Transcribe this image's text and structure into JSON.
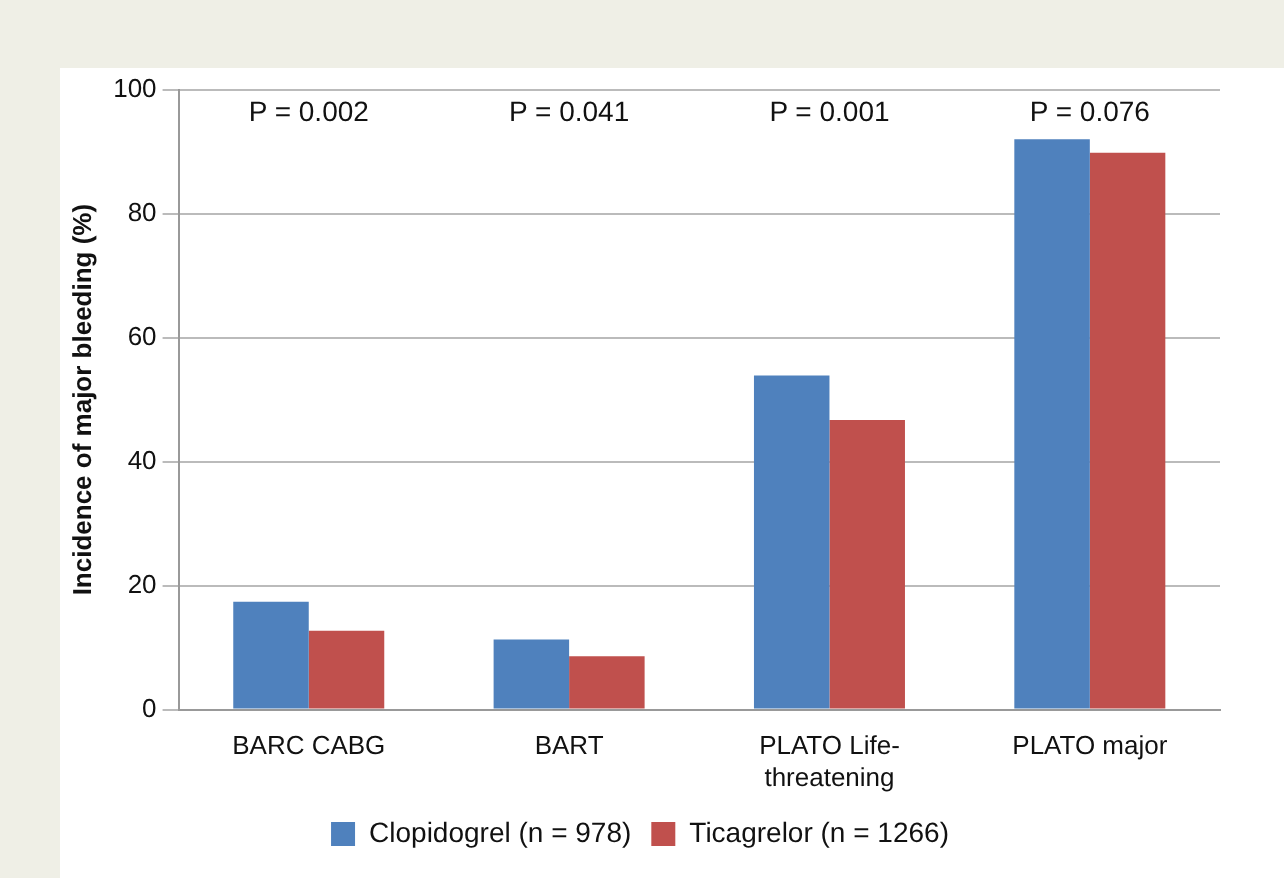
{
  "chart_data": {
    "type": "bar",
    "ylabel": "Incidence of major bleeding (%)",
    "categories": [
      "BARC CABG",
      "BART",
      "PLATO Life-threatening",
      "PLATO major"
    ],
    "series": [
      {
        "name": "Clopidogrel (n = 978)",
        "color": "#4f81bd",
        "values": [
          17.4,
          11.3,
          53.9,
          92.0
        ]
      },
      {
        "name": "Ticagrelor (n = 1266)",
        "color": "#c0504d",
        "values": [
          12.7,
          8.6,
          46.7,
          89.8
        ]
      }
    ],
    "ylim": [
      0,
      100
    ],
    "yticks": [
      0,
      20,
      40,
      60,
      80,
      100
    ],
    "grid": "y",
    "legend": "bottom",
    "annotations": [
      "P = 0.002",
      "P = 0.041",
      "P = 0.001",
      "P = 0.076"
    ]
  }
}
